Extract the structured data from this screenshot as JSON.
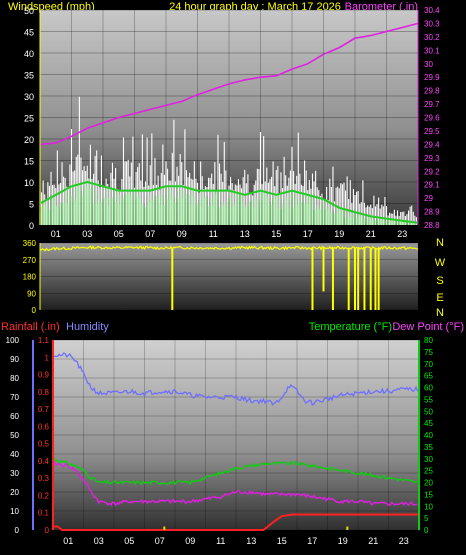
{
  "title": "24 hour graph day : March 17 2026",
  "colors": {
    "windspeed": "#ffffff",
    "windspeed_avg": "#22cc22",
    "windspeed_low": "#b8ffb8",
    "barometer": "#e020e0",
    "wind_direction": "#ffff00",
    "rainfall": "#ff2020",
    "rain_rate": "#e0e000",
    "humidity": "#6f6fff",
    "temperature": "#10cc10",
    "dew_point": "#e020e0",
    "label_yellow": "#ffff00",
    "label_magenta": "#ff44ff",
    "label_blue": "#8888ff",
    "label_green": "#00ee00",
    "label_red": "#ff3030"
  },
  "compass": [
    "N",
    "W",
    "S",
    "E",
    "N"
  ],
  "chart_data": [
    {
      "type": "line",
      "name": "wind_barometer",
      "title": "24 hour graph day : March 17 2026",
      "ylabel": "Windspeed (mph)",
      "y2label": "Barometer (.in)",
      "ylim": [
        0,
        50
      ],
      "y2lim": [
        28.8,
        30.4
      ],
      "yticks": [
        "0",
        "5",
        "10",
        "15",
        "20",
        "25",
        "30",
        "35",
        "40",
        "45",
        "50"
      ],
      "y2ticks": [
        "28.8",
        "28.9",
        "29",
        "29.1",
        "29.2",
        "29.3",
        "29.4",
        "29.5",
        "29.6",
        "29.7",
        "29.8",
        "29.9",
        "30",
        "30.1",
        "30.2",
        "30.3",
        "30.4"
      ],
      "xticks": [
        "01",
        "03",
        "05",
        "07",
        "09",
        "11",
        "13",
        "15",
        "17",
        "19",
        "21",
        "23"
      ],
      "series": [
        {
          "key": "gust_peak",
          "hours": [
            0,
            1,
            2,
            3,
            4,
            5,
            6,
            7,
            8,
            9,
            10,
            11,
            12,
            13,
            14,
            15,
            16,
            17,
            18,
            19,
            20,
            21,
            22,
            23,
            24
          ],
          "values": [
            16,
            20,
            28,
            33,
            27,
            24,
            23,
            24,
            26,
            26,
            22,
            22,
            22,
            20,
            23,
            22,
            23,
            21,
            17,
            15,
            14,
            10,
            7,
            6,
            6
          ]
        },
        {
          "key": "gust_typical",
          "hours": [
            0,
            1,
            2,
            3,
            4,
            5,
            6,
            7,
            8,
            9,
            10,
            11,
            12,
            13,
            14,
            15,
            16,
            17,
            18,
            19,
            20,
            21,
            22,
            23,
            24
          ],
          "values": [
            9,
            12,
            15,
            18,
            15,
            14,
            13,
            14,
            15,
            15,
            13,
            13,
            13,
            12,
            13,
            13,
            13,
            12,
            10,
            9,
            8,
            6,
            4,
            3,
            3
          ]
        },
        {
          "key": "avg_speed",
          "hours": [
            0,
            1,
            2,
            3,
            4,
            5,
            6,
            7,
            8,
            9,
            10,
            11,
            12,
            13,
            14,
            15,
            16,
            17,
            18,
            19,
            20,
            21,
            22,
            23,
            24
          ],
          "values": [
            5,
            7,
            9,
            10,
            9,
            8,
            8,
            8,
            9,
            9,
            8,
            8,
            8,
            7,
            8,
            7,
            8,
            7,
            6,
            4,
            3,
            2,
            1.5,
            1,
            0.5
          ]
        },
        {
          "key": "barometer",
          "axis": "y2",
          "hours": [
            0,
            1,
            2,
            3,
            4,
            5,
            6,
            7,
            8,
            9,
            10,
            11,
            12,
            13,
            14,
            15,
            16,
            17,
            18,
            19,
            20,
            21,
            22,
            23,
            24
          ],
          "values": [
            29.4,
            29.41,
            29.46,
            29.52,
            29.56,
            29.6,
            29.63,
            29.66,
            29.69,
            29.72,
            29.77,
            29.81,
            29.85,
            29.88,
            29.9,
            29.91,
            29.96,
            30.0,
            30.07,
            30.12,
            30.19,
            30.21,
            30.24,
            30.27,
            30.3
          ]
        }
      ]
    },
    {
      "type": "scatter",
      "name": "wind_direction",
      "ylim": [
        0,
        360
      ],
      "yticks": [
        "0",
        "90",
        "180",
        "270",
        "360"
      ],
      "series": [
        {
          "key": "direction_typical",
          "hours": [
            0,
            1,
            2,
            3,
            4,
            5,
            6,
            7,
            8,
            9,
            10,
            11,
            12,
            13,
            14,
            15,
            16,
            17,
            18,
            19,
            20,
            21,
            22,
            23,
            24
          ],
          "values": [
            322,
            330,
            332,
            336,
            335,
            334,
            336,
            334,
            333,
            335,
            334,
            333,
            333,
            335,
            334,
            332,
            334,
            333,
            333,
            334,
            335,
            332,
            334,
            333,
            330
          ]
        },
        {
          "key": "direction_dips",
          "hours": [
            8.4,
            17.3,
            18.0,
            18.6,
            19.6,
            20.0,
            20.2,
            20.6,
            21.0,
            21.3,
            21.5
          ],
          "values": [
            0,
            0,
            100,
            0,
            0,
            0,
            0,
            0,
            0,
            0,
            0
          ]
        }
      ]
    },
    {
      "type": "line",
      "name": "rain_humidity_temp",
      "y1label": "Rainfall (.in)",
      "y2label": "Humidity",
      "y3label": "Temperature (°F)",
      "y4label": "Dew Point (°F)",
      "rain_lim": [
        0,
        1.1
      ],
      "humidity_lim": [
        0,
        100
      ],
      "temp_lim": [
        0,
        80
      ],
      "rain_ticks": [
        "0",
        "0.1",
        "0.2",
        "0.3",
        "0.4",
        "0.5",
        "0.6",
        "0.7",
        "0.8",
        "0.9",
        "1",
        "1.1"
      ],
      "humidity_ticks": [
        "0",
        "10",
        "20",
        "30",
        "40",
        "50",
        "60",
        "70",
        "80",
        "90",
        "100"
      ],
      "temp_ticks": [
        "0",
        "5",
        "10",
        "15",
        "20",
        "25",
        "30",
        "35",
        "40",
        "45",
        "50",
        "55",
        "60",
        "65",
        "70",
        "75",
        "80"
      ],
      "xticks": [
        "01",
        "03",
        "05",
        "07",
        "09",
        "11",
        "13",
        "15",
        "17",
        "19",
        "21",
        "23"
      ],
      "series": [
        {
          "key": "humidity",
          "hours": [
            0,
            1,
            1.5,
            2,
            2.5,
            3,
            4,
            5,
            6,
            7,
            8,
            9,
            10,
            11,
            12,
            13,
            14,
            14.5,
            15,
            15.5,
            16,
            16.5,
            17,
            18,
            19,
            20,
            21,
            22,
            23,
            24
          ],
          "values": [
            92,
            92,
            89,
            82,
            75,
            72,
            72,
            73,
            72,
            73,
            73,
            71,
            70,
            70,
            70,
            68,
            68,
            66,
            70,
            76,
            73,
            68,
            67,
            69,
            71,
            72,
            73,
            73,
            74,
            74
          ]
        },
        {
          "key": "temperature",
          "hours": [
            0,
            1,
            1.5,
            2,
            2.5,
            3,
            4,
            5,
            6,
            7,
            8,
            9,
            10,
            11,
            12,
            13,
            14,
            15,
            16,
            17,
            18,
            19,
            20,
            21,
            22,
            23,
            24
          ],
          "values": [
            30,
            28,
            27,
            25,
            22,
            20,
            20,
            20,
            20,
            20,
            20,
            20,
            22,
            24,
            26,
            27,
            28,
            28,
            28,
            27,
            26,
            25,
            24,
            23,
            22,
            21,
            20
          ]
        },
        {
          "key": "dew_point",
          "hours": [
            0,
            1,
            1.5,
            2,
            2.5,
            3,
            4,
            5,
            6,
            7,
            8,
            9,
            10,
            11,
            12,
            13,
            14,
            15,
            16,
            17,
            18,
            19,
            20,
            21,
            22,
            23,
            24
          ],
          "values": [
            28,
            27,
            25,
            21,
            16,
            12,
            11,
            12,
            12,
            12,
            12,
            12,
            13,
            14,
            16,
            16,
            15,
            15,
            15,
            14,
            13,
            12,
            12,
            11,
            11,
            11,
            11
          ]
        },
        {
          "key": "rainfall",
          "hours": [
            0,
            0.3,
            0.6,
            1,
            13.8,
            14.5,
            15,
            15.7,
            16,
            17,
            20,
            22,
            23,
            24
          ],
          "values": [
            0.02,
            0.02,
            0,
            0,
            0,
            0.05,
            0.08,
            0.09,
            0.09,
            0.09,
            0.09,
            0.09,
            0.09,
            0.09
          ]
        },
        {
          "key": "rain_rate_spikes",
          "hours": [
            7.3,
            19.3
          ],
          "values": [
            0.02,
            0.02
          ]
        }
      ]
    }
  ]
}
